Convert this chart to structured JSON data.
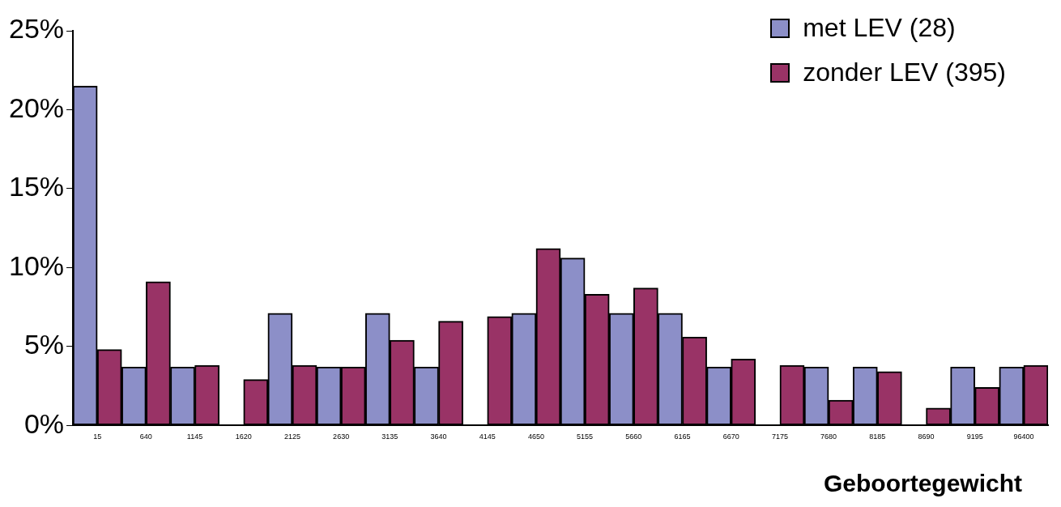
{
  "chart_data": {
    "type": "bar",
    "xlabel": "Geboortegewicht",
    "categories": [
      "15",
      "640",
      "1145",
      "1620",
      "2125",
      "2630",
      "3135",
      "3640",
      "4145",
      "4650",
      "5155",
      "5660",
      "6165",
      "6670",
      "7175",
      "7680",
      "8185",
      "8690",
      "9195",
      "96400"
    ],
    "series": [
      {
        "name": "met LEV (28)",
        "color": "#8c8fc8",
        "values": [
          21.5,
          3.7,
          3.7,
          0,
          7.1,
          3.7,
          7.1,
          3.7,
          0,
          7.1,
          10.6,
          7.1,
          7.1,
          3.7,
          0,
          3.7,
          3.7,
          0,
          3.7,
          3.7
        ]
      },
      {
        "name": "zonder LEV (395)",
        "color": "#993366",
        "values": [
          4.8,
          9.1,
          3.8,
          2.9,
          3.8,
          3.7,
          5.4,
          6.6,
          6.9,
          11.2,
          8.3,
          8.7,
          5.6,
          4.2,
          3.8,
          1.6,
          3.4,
          1.1,
          2.4,
          3.8
        ]
      }
    ],
    "ylim": [
      0,
      25
    ],
    "yticks": [
      {
        "value": 0,
        "label": "0%"
      },
      {
        "value": 5,
        "label": "5%"
      },
      {
        "value": 10,
        "label": "10%"
      },
      {
        "value": 15,
        "label": "15%"
      },
      {
        "value": 20,
        "label": "20%"
      },
      {
        "value": 25,
        "label": "25%"
      }
    ],
    "grid": false,
    "legend": "top right"
  }
}
